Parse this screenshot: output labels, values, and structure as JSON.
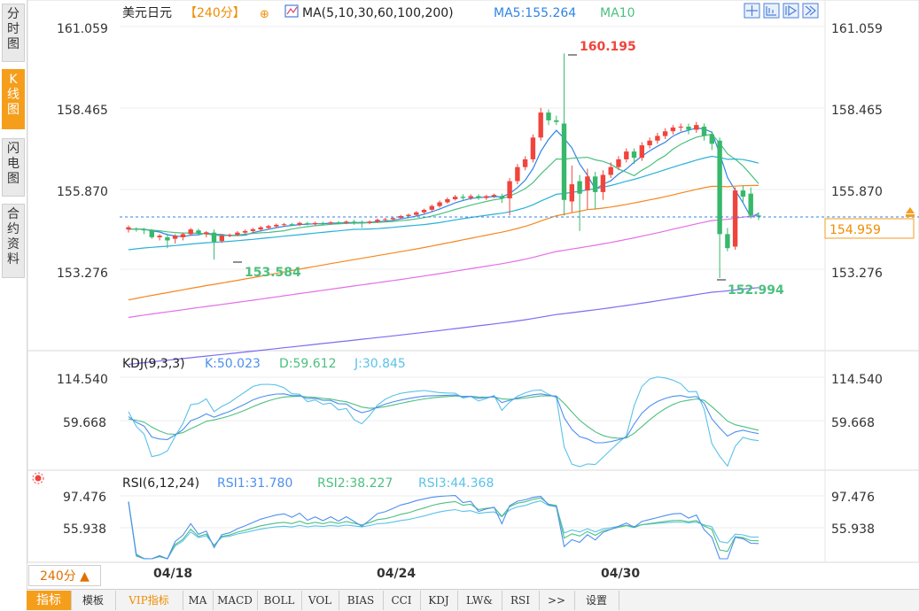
{
  "left_tabs": [
    {
      "label": "分时图",
      "active": false
    },
    {
      "label": "K线图",
      "active": true
    },
    {
      "label": "闪电图",
      "active": false
    },
    {
      "label": "合约资料",
      "active": false
    }
  ],
  "header": {
    "symbol": "美元日元",
    "period": "【240分】",
    "ma_label": "MA(5,10,30,60,100,200)",
    "ma5": "MA5:155.264",
    "ma10": "MA10"
  },
  "colors": {
    "up": "#f0443c",
    "down": "#37b86a",
    "ma5": "#2f84e6",
    "ma10": "#4cc07f",
    "ma30": "#2ab1d6",
    "ma60": "#f5871f",
    "ma100": "#e36fe6",
    "ma200": "#7a6df0",
    "kdj_k": "#4e8ff0",
    "kdj_d": "#4cc07f",
    "kdj_j": "#5ac2e8",
    "accent": "#f59e1c"
  },
  "price_panel": {
    "axis_labels": [
      "161.059",
      "158.465",
      "155.870",
      "153.276"
    ],
    "high_label": "160.195",
    "low_label1": "153.584",
    "low_label2": "152.994",
    "current_price": "154.959"
  },
  "kdj_panel": {
    "title": "KDJ(9,3,3)",
    "k": "K:50.023",
    "d": "D:59.612",
    "j": "J:30.845",
    "axis_labels": [
      "114.540",
      "59.668"
    ]
  },
  "rsi_panel": {
    "title": "RSI(6,12,24)",
    "rsi1": "RSI1:31.780",
    "rsi2": "RSI2:38.227",
    "rsi3": "RSI3:44.368",
    "axis_labels": [
      "97.476",
      "55.938"
    ]
  },
  "x_labels": [
    "04/18",
    "04/24",
    "04/30"
  ],
  "period_button": "240分 ▲",
  "bottom_tabs": [
    "指标",
    "模板",
    "VIP指标",
    "MA",
    "MACD",
    "BOLL",
    "VOL",
    "BIAS",
    "CCI",
    "KDJ",
    "LW&",
    "RSI",
    ">>",
    "设置"
  ],
  "chart_data": {
    "type": "candlestick",
    "title": "美元日元",
    "price_range": [
      150.6,
      161.6
    ],
    "candles": [
      [
        154.55,
        154.62,
        154.45,
        154.68
      ],
      [
        154.58,
        154.55,
        154.48,
        154.62
      ],
      [
        154.55,
        154.52,
        154.4,
        154.6
      ],
      [
        154.52,
        154.3,
        154.25,
        154.56
      ],
      [
        154.3,
        154.35,
        154.2,
        154.4
      ],
      [
        154.3,
        154.2,
        153.95,
        154.42
      ],
      [
        154.25,
        154.34,
        154.1,
        154.4
      ],
      [
        154.3,
        154.4,
        154.2,
        154.45
      ],
      [
        154.4,
        154.55,
        154.35,
        154.6
      ],
      [
        154.52,
        154.42,
        154.35,
        154.58
      ],
      [
        154.4,
        154.46,
        154.3,
        154.5
      ],
      [
        154.45,
        154.15,
        153.584,
        154.55
      ],
      [
        154.18,
        154.35,
        154.12,
        154.4
      ],
      [
        154.35,
        154.38,
        154.3,
        154.42
      ],
      [
        154.38,
        154.45,
        154.33,
        154.5
      ],
      [
        154.45,
        154.5,
        154.4,
        154.55
      ],
      [
        154.5,
        154.56,
        154.45,
        154.6
      ],
      [
        154.55,
        154.62,
        154.5,
        154.66
      ],
      [
        154.6,
        154.66,
        154.55,
        154.7
      ],
      [
        154.65,
        154.7,
        154.6,
        154.74
      ],
      [
        154.7,
        154.72,
        154.64,
        154.76
      ],
      [
        154.72,
        154.7,
        154.66,
        154.76
      ],
      [
        154.7,
        154.76,
        154.66,
        154.8
      ],
      [
        154.75,
        154.72,
        154.68,
        154.8
      ],
      [
        154.72,
        154.76,
        154.68,
        154.8
      ],
      [
        154.76,
        154.74,
        154.7,
        154.8
      ],
      [
        154.74,
        154.78,
        154.7,
        154.82
      ],
      [
        154.78,
        154.76,
        154.72,
        154.82
      ],
      [
        154.76,
        154.8,
        154.72,
        154.84
      ],
      [
        154.8,
        154.78,
        154.7,
        154.86
      ],
      [
        154.78,
        154.76,
        154.6,
        154.84
      ],
      [
        154.76,
        154.8,
        154.72,
        154.84
      ],
      [
        154.8,
        154.86,
        154.76,
        154.9
      ],
      [
        154.86,
        154.88,
        154.8,
        154.92
      ],
      [
        154.88,
        154.92,
        154.84,
        154.96
      ],
      [
        154.92,
        154.98,
        154.88,
        155.02
      ],
      [
        154.98,
        155.02,
        154.94,
        155.06
      ],
      [
        155.02,
        155.1,
        154.98,
        155.14
      ],
      [
        155.1,
        155.18,
        155.05,
        155.22
      ],
      [
        155.18,
        155.3,
        155.12,
        155.35
      ],
      [
        155.3,
        155.42,
        155.25,
        155.48
      ],
      [
        155.42,
        155.52,
        155.38,
        155.58
      ],
      [
        155.52,
        155.6,
        155.48,
        155.66
      ],
      [
        155.6,
        155.56,
        155.5,
        155.68
      ],
      [
        155.56,
        155.62,
        155.5,
        155.68
      ],
      [
        155.62,
        155.56,
        155.5,
        155.68
      ],
      [
        155.56,
        155.62,
        155.5,
        155.66
      ],
      [
        155.62,
        155.66,
        155.56,
        155.7
      ],
      [
        155.62,
        155.55,
        155.4,
        155.7
      ],
      [
        155.55,
        156.1,
        155.0,
        156.2
      ],
      [
        156.1,
        156.55,
        156.0,
        156.65
      ],
      [
        156.55,
        156.8,
        156.45,
        156.9
      ],
      [
        156.8,
        157.5,
        156.7,
        157.6
      ],
      [
        157.5,
        158.3,
        157.4,
        158.45
      ],
      [
        158.3,
        158.05,
        157.9,
        158.4
      ],
      [
        158.05,
        158.0,
        157.9,
        158.2
      ],
      [
        157.95,
        155.5,
        155.0,
        160.195
      ],
      [
        155.45,
        156.0,
        155.1,
        156.6
      ],
      [
        156.1,
        155.7,
        154.5,
        156.3
      ],
      [
        155.8,
        156.25,
        155.2,
        156.5
      ],
      [
        156.25,
        155.75,
        155.2,
        156.4
      ],
      [
        155.75,
        156.3,
        155.5,
        156.45
      ],
      [
        156.3,
        156.55,
        156.2,
        156.7
      ],
      [
        156.55,
        156.8,
        156.45,
        156.9
      ],
      [
        156.8,
        157.05,
        156.7,
        157.15
      ],
      [
        157.05,
        156.85,
        156.65,
        157.15
      ],
      [
        156.85,
        157.25,
        156.75,
        157.35
      ],
      [
        157.25,
        157.4,
        157.15,
        157.5
      ],
      [
        157.4,
        157.55,
        157.3,
        157.65
      ],
      [
        157.55,
        157.7,
        157.45,
        157.8
      ],
      [
        157.7,
        157.82,
        157.6,
        157.9
      ],
      [
        157.82,
        157.85,
        157.7,
        157.95
      ],
      [
        157.85,
        157.75,
        157.6,
        157.95
      ],
      [
        157.75,
        157.9,
        157.65,
        158.0
      ],
      [
        157.85,
        157.55,
        157.4,
        157.95
      ],
      [
        157.6,
        157.3,
        157.1,
        157.7
      ],
      [
        157.4,
        154.4,
        152.994,
        157.5
      ],
      [
        154.4,
        153.95,
        153.85,
        154.6
      ],
      [
        154.0,
        155.8,
        153.9,
        155.9
      ],
      [
        155.8,
        155.6,
        155.4,
        155.95
      ],
      [
        155.7,
        155.0,
        154.9,
        155.9
      ],
      [
        155.0,
        154.96,
        154.85,
        155.1
      ]
    ],
    "kdj_range": [
      20,
      140
    ],
    "rsi_range": [
      20,
      130
    ]
  }
}
